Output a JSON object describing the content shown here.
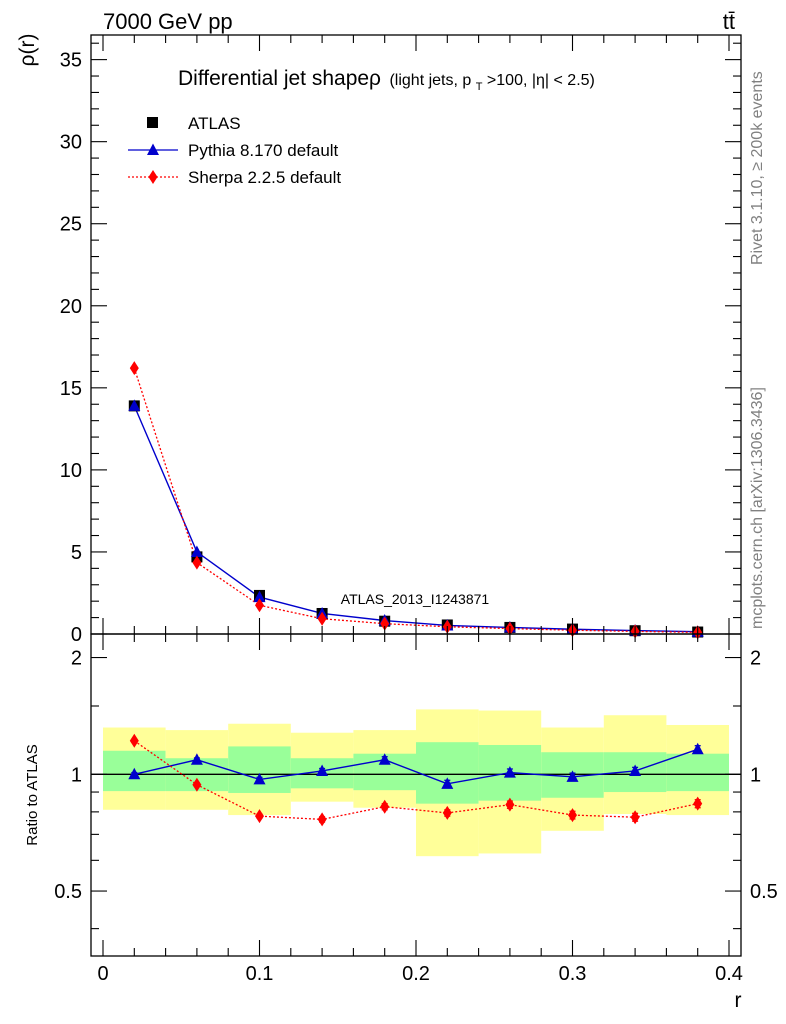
{
  "header": {
    "energy_label": "7000 GeV pp",
    "process_label": "tt̄"
  },
  "side_labels": {
    "rivet": "Rivet 3.1.10, ≥ 200k events",
    "mcplots": "mcplots.cern.ch [arXiv:1306.3436]"
  },
  "watermark": "ATLAS_2013_I1243871",
  "colors": {
    "atlas": "#000000",
    "pythia": "#0000cc",
    "sherpa": "#ff0000",
    "band_inner": "#99ff99",
    "band_outer": "#ffff99"
  },
  "chart_data": [
    {
      "type": "line",
      "panel": "main",
      "title_main": "Differential jet shapeρ",
      "title_detail": "(light jets, p",
      "title_sub": "T",
      "title_rest": ">100, |η| < 2.5)",
      "ylabel": "ρ(r)",
      "xlim": [
        0,
        0.4
      ],
      "ylim": [
        0,
        36.5
      ],
      "yticks": [
        0,
        5,
        10,
        15,
        20,
        25,
        30,
        35
      ],
      "ytick_labels": [
        "0",
        "5",
        "10",
        "15",
        "20",
        "25",
        "30",
        "35"
      ],
      "x": [
        0.02,
        0.06,
        0.1,
        0.14,
        0.18,
        0.22,
        0.26,
        0.3,
        0.34,
        0.38
      ],
      "legend_position": "top-left",
      "series": [
        {
          "name": "ATLAS",
          "marker": "square",
          "values": [
            13.9,
            4.7,
            2.35,
            1.25,
            0.78,
            0.55,
            0.4,
            0.3,
            0.2,
            0.12
          ]
        },
        {
          "name": "Pythia 8.170 default",
          "marker": "triangle",
          "values": [
            13.9,
            5.0,
            2.25,
            1.25,
            0.82,
            0.52,
            0.4,
            0.29,
            0.21,
            0.14
          ]
        },
        {
          "name": "Sherpa 2.2.5 default",
          "marker": "diamond",
          "values": [
            16.2,
            4.35,
            1.75,
            0.93,
            0.63,
            0.44,
            0.33,
            0.23,
            0.16,
            0.1
          ]
        }
      ]
    },
    {
      "type": "line",
      "panel": "ratio",
      "ylabel": "Ratio to ATLAS",
      "xlabel": "r",
      "xlim": [
        0,
        0.4
      ],
      "ylim": [
        0.34,
        2.3
      ],
      "yticks": [
        0.5,
        1,
        2
      ],
      "ytick_labels": [
        "0.5",
        "1",
        "2"
      ],
      "xticks": [
        0,
        0.1,
        0.2,
        0.3,
        0.4
      ],
      "xtick_labels": [
        "0",
        "0.1",
        "0.2",
        "0.3",
        "0.4"
      ],
      "bins": [
        [
          0.0,
          0.04
        ],
        [
          0.04,
          0.08
        ],
        [
          0.08,
          0.12
        ],
        [
          0.12,
          0.16
        ],
        [
          0.16,
          0.2
        ],
        [
          0.2,
          0.24
        ],
        [
          0.24,
          0.28
        ],
        [
          0.28,
          0.32
        ],
        [
          0.32,
          0.36
        ],
        [
          0.36,
          0.4
        ]
      ],
      "band_inner": [
        [
          0.905,
          1.15
        ],
        [
          0.905,
          1.1
        ],
        [
          0.895,
          1.18
        ],
        [
          0.92,
          1.1
        ],
        [
          0.91,
          1.13
        ],
        [
          0.84,
          1.21
        ],
        [
          0.855,
          1.19
        ],
        [
          0.87,
          1.14
        ],
        [
          0.9,
          1.14
        ],
        [
          0.905,
          1.13
        ]
      ],
      "band_outer": [
        [
          0.81,
          1.32
        ],
        [
          0.81,
          1.3
        ],
        [
          0.785,
          1.35
        ],
        [
          0.85,
          1.28
        ],
        [
          0.82,
          1.3
        ],
        [
          0.615,
          1.47
        ],
        [
          0.625,
          1.46
        ],
        [
          0.715,
          1.32
        ],
        [
          0.79,
          1.42
        ],
        [
          0.785,
          1.34
        ]
      ],
      "x": [
        0.02,
        0.06,
        0.1,
        0.14,
        0.18,
        0.22,
        0.26,
        0.3,
        0.34,
        0.38
      ],
      "series": [
        {
          "name": "Pythia 8.170 default",
          "values": [
            1.0,
            1.09,
            0.97,
            1.02,
            1.09,
            0.945,
            1.01,
            0.985,
            1.02,
            1.16
          ],
          "errors": [
            0.01,
            0.012,
            0.012,
            0.015,
            0.02,
            0.02,
            0.022,
            0.022,
            0.022,
            0.025
          ]
        },
        {
          "name": "Sherpa 2.2.5 default",
          "values": [
            1.22,
            0.94,
            0.78,
            0.765,
            0.825,
            0.795,
            0.835,
            0.785,
            0.775,
            0.84
          ],
          "errors": [
            0.01,
            0.01,
            0.01,
            0.012,
            0.015,
            0.015,
            0.018,
            0.018,
            0.018,
            0.02
          ]
        }
      ]
    }
  ]
}
